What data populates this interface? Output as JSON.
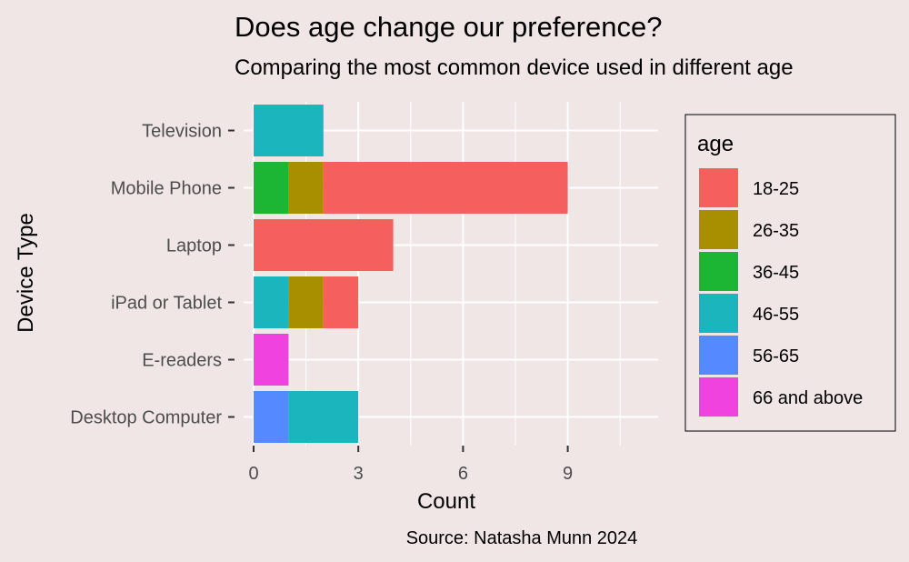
{
  "chart_data": {
    "type": "bar",
    "orientation": "horizontal",
    "stacked": true,
    "title": "Does age change our preference?",
    "subtitle": "Comparing the most common device used in different age",
    "xlabel": "Count",
    "ylabel": "Device Type",
    "caption": "Source: Natasha Munn 2024",
    "xlim": [
      0,
      11.5
    ],
    "x_ticks": [
      0,
      3,
      6,
      9
    ],
    "grid": true,
    "categories": [
      "Desktop Computer",
      "E-readers",
      "iPad or Tablet",
      "Laptop",
      "Mobile Phone",
      "Television"
    ],
    "legend": {
      "title": "age",
      "position": "right"
    },
    "series": [
      {
        "name": "66 and above",
        "color": "#F042DE",
        "values": [
          0,
          1,
          0,
          0,
          0,
          0
        ]
      },
      {
        "name": "56-65",
        "color": "#5489FF",
        "values": [
          1,
          0,
          0,
          0,
          0,
          0
        ]
      },
      {
        "name": "46-55",
        "color": "#1BB5BE",
        "values": [
          2,
          0,
          1,
          0,
          0,
          2
        ]
      },
      {
        "name": "36-45",
        "color": "#1DB534",
        "values": [
          0,
          0,
          0,
          0,
          1,
          0
        ]
      },
      {
        "name": "26-35",
        "color": "#A88F00",
        "values": [
          0,
          0,
          1,
          0,
          1,
          0
        ]
      },
      {
        "name": "18-25",
        "color": "#F5605E",
        "values": [
          0,
          0,
          1,
          4,
          7,
          0
        ]
      }
    ],
    "legend_order": [
      "18-25",
      "26-35",
      "36-45",
      "46-55",
      "56-65",
      "66 and above"
    ]
  }
}
